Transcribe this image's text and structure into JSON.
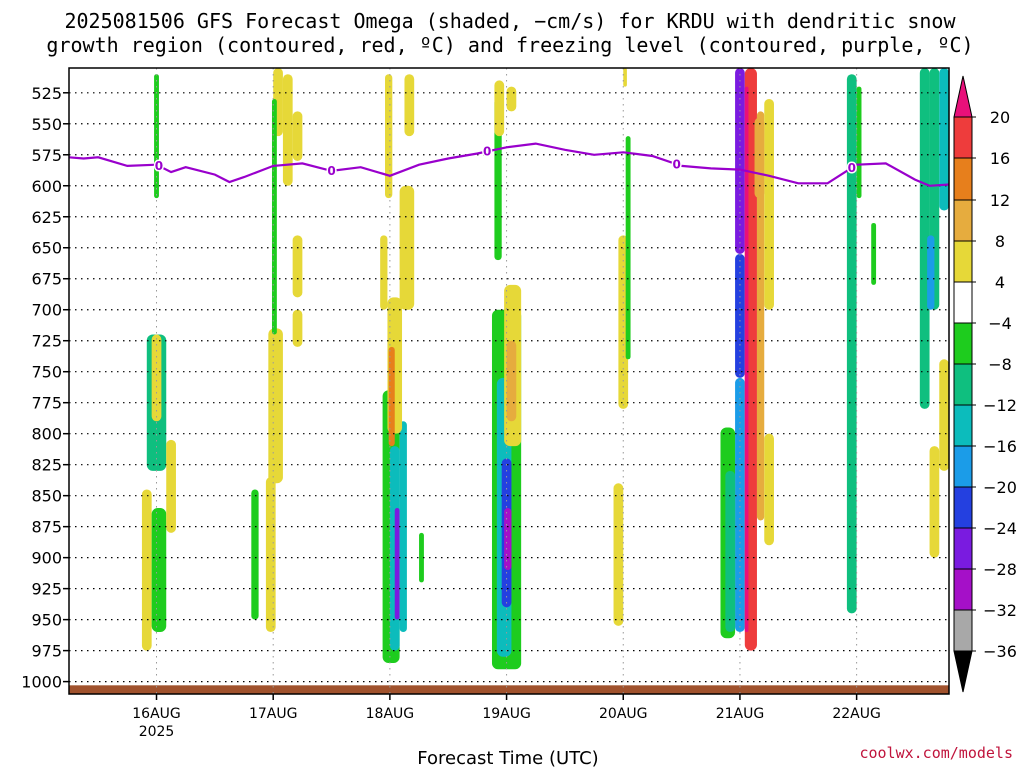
{
  "chart_data": {
    "type": "heatmap",
    "title_line1": "2025081506 GFS Forecast Omega (shaded, −cm/s) for KRDU with dendritic snow",
    "title_line2": "growth region (contoured, red, ºC) and freezing level (contoured, purple, ºC)",
    "xlabel": "Forecast Time (UTC)",
    "credit": "coolwx.com/models",
    "y_axis": {
      "unit": "hPa",
      "range": [
        1010,
        505
      ],
      "ticks": [
        525,
        550,
        575,
        600,
        625,
        650,
        675,
        700,
        725,
        750,
        775,
        800,
        825,
        850,
        875,
        900,
        925,
        950,
        975,
        1000
      ],
      "grid": true
    },
    "x_axis": {
      "start": "2025-08-15T06:00",
      "end": "2025-08-22T19:00",
      "ticks": [
        {
          "label": "16AUG",
          "sublabel": "2025",
          "time": "2025-08-16T00:00"
        },
        {
          "label": "17AUG",
          "time": "2025-08-17T00:00"
        },
        {
          "label": "18AUG",
          "time": "2025-08-18T00:00"
        },
        {
          "label": "19AUG",
          "time": "2025-08-19T00:00"
        },
        {
          "label": "20AUG",
          "time": "2025-08-20T00:00"
        },
        {
          "label": "21AUG",
          "time": "2025-08-21T00:00"
        },
        {
          "label": "22AUG",
          "time": "2025-08-22T00:00"
        }
      ]
    },
    "colorbar": {
      "labels": [
        20,
        16,
        12,
        8,
        4,
        -4,
        -8,
        -12,
        -16,
        -20,
        -24,
        -28,
        -32,
        -36
      ],
      "colors": {
        "gt20": "#e8107a",
        "16": "#ee3c3c",
        "12": "#e77f1c",
        "8": "#e6ac3e",
        "4": "#e6d838",
        "0": "#ffffff",
        "-4": "#1ecc1e",
        "-8": "#0fbf7f",
        "-12": "#0cbcbc",
        "-16": "#1b9ce8",
        "-20": "#2440e0",
        "-24": "#7a1be0",
        "-28": "#a510c8",
        "-32": "#a8a8a8",
        "lt-36": "#000000"
      }
    },
    "freezing_level_line": {
      "color": "#9900cc",
      "label": "0",
      "points": [
        [
          "2025-08-15T06:00",
          577
        ],
        [
          "2025-08-15T09:00",
          578
        ],
        [
          "2025-08-15T12:00",
          577
        ],
        [
          "2025-08-15T18:00",
          584
        ],
        [
          "2025-08-16T00:00",
          583
        ],
        [
          "2025-08-16T03:00",
          589
        ],
        [
          "2025-08-16T06:00",
          585
        ],
        [
          "2025-08-16T12:00",
          591
        ],
        [
          "2025-08-16T15:00",
          597
        ],
        [
          "2025-08-16T18:00",
          593
        ],
        [
          "2025-08-17T00:00",
          584
        ],
        [
          "2025-08-17T06:00",
          582
        ],
        [
          "2025-08-17T12:00",
          588
        ],
        [
          "2025-08-17T18:00",
          585
        ],
        [
          "2025-08-18T00:00",
          592
        ],
        [
          "2025-08-18T06:00",
          583
        ],
        [
          "2025-08-18T12:00",
          578
        ],
        [
          "2025-08-18T18:00",
          574
        ],
        [
          "2025-08-19T00:00",
          569
        ],
        [
          "2025-08-19T06:00",
          566
        ],
        [
          "2025-08-19T12:00",
          571
        ],
        [
          "2025-08-19T18:00",
          575
        ],
        [
          "2025-08-20T00:00",
          573
        ],
        [
          "2025-08-20T06:00",
          576
        ],
        [
          "2025-08-20T12:00",
          584
        ],
        [
          "2025-08-20T18:00",
          586
        ],
        [
          "2025-08-21T00:00",
          587
        ],
        [
          "2025-08-21T06:00",
          592
        ],
        [
          "2025-08-21T12:00",
          598
        ],
        [
          "2025-08-21T18:00",
          598
        ],
        [
          "2025-08-22T00:00",
          583
        ],
        [
          "2025-08-22T06:00",
          582
        ],
        [
          "2025-08-22T12:00",
          595
        ],
        [
          "2025-08-22T15:00",
          600
        ],
        [
          "2025-08-22T19:00",
          599
        ]
      ],
      "labels_at": [
        "2025-08-16T00:30",
        "2025-08-17T12:00",
        "2025-08-18T20:00",
        "2025-08-20T11:00",
        "2025-08-21T23:00"
      ]
    },
    "regions": [
      {
        "t": [
          "2025-08-15T22:00",
          "2025-08-16T02:00"
        ],
        "p": [
          720,
          830
        ],
        "v": -8
      },
      {
        "t": [
          "2025-08-15T23:00",
          "2025-08-16T01:00"
        ],
        "p": [
          720,
          790
        ],
        "v": 6
      },
      {
        "t": [
          "2025-08-15T21:00",
          "2025-08-15T23:00"
        ],
        "p": [
          845,
          975
        ],
        "v": 6
      },
      {
        "t": [
          "2025-08-15T23:00",
          "2025-08-16T02:00"
        ],
        "p": [
          860,
          960
        ],
        "v": -6
      },
      {
        "t": [
          "2025-08-16T02:00",
          "2025-08-16T04:00"
        ],
        "p": [
          805,
          880
        ],
        "v": 6
      },
      {
        "t": [
          "2025-08-15T23:30",
          "2025-08-16T00:30"
        ],
        "p": [
          510,
          610
        ],
        "v": -6
      },
      {
        "t": [
          "2025-08-17T00:00",
          "2025-08-17T02:00"
        ],
        "p": [
          505,
          560
        ],
        "v": 6
      },
      {
        "t": [
          "2025-08-17T02:00",
          "2025-08-17T04:00"
        ],
        "p": [
          510,
          600
        ],
        "v": 6
      },
      {
        "t": [
          "2025-08-16T23:00",
          "2025-08-17T02:00"
        ],
        "p": [
          715,
          840
        ],
        "v": 6
      },
      {
        "t": [
          "2025-08-16T22:30",
          "2025-08-17T00:30"
        ],
        "p": [
          835,
          960
        ],
        "v": 6
      },
      {
        "t": [
          "2025-08-16T19:30",
          "2025-08-16T21:00"
        ],
        "p": [
          845,
          950
        ],
        "v": -6
      },
      {
        "t": [
          "2025-08-16T23:45",
          "2025-08-17T00:45"
        ],
        "p": [
          530,
          720
        ],
        "v": -6
      },
      {
        "t": [
          "2025-08-17T04:00",
          "2025-08-17T06:00"
        ],
        "p": [
          640,
          690
        ],
        "v": 6
      },
      {
        "t": [
          "2025-08-17T04:00",
          "2025-08-17T06:00"
        ],
        "p": [
          540,
          580
        ],
        "v": 6
      },
      {
        "t": [
          "2025-08-17T04:00",
          "2025-08-17T06:00"
        ],
        "p": [
          700,
          730
        ],
        "v": 6
      },
      {
        "t": [
          "2025-08-17T22:30",
          "2025-08-18T02:00"
        ],
        "p": [
          765,
          985
        ],
        "v": -6
      },
      {
        "t": [
          "2025-08-18T00:00",
          "2025-08-18T02:00"
        ],
        "p": [
          810,
          975
        ],
        "v": -12
      },
      {
        "t": [
          "2025-08-18T01:00",
          "2025-08-18T02:00"
        ],
        "p": [
          860,
          950
        ],
        "v": -24
      },
      {
        "t": [
          "2025-08-18T02:00",
          "2025-08-18T03:30"
        ],
        "p": [
          790,
          960
        ],
        "v": -12
      },
      {
        "t": [
          "2025-08-17T23:30",
          "2025-08-18T02:30"
        ],
        "p": [
          690,
          800
        ],
        "v": 6
      },
      {
        "t": [
          "2025-08-17T23:45",
          "2025-08-18T01:00"
        ],
        "p": [
          730,
          810
        ],
        "v": 12
      },
      {
        "t": [
          "2025-08-18T02:00",
          "2025-08-18T05:00"
        ],
        "p": [
          600,
          700
        ],
        "v": 6
      },
      {
        "t": [
          "2025-08-17T22:00",
          "2025-08-17T23:30"
        ],
        "p": [
          640,
          700
        ],
        "v": 6
      },
      {
        "t": [
          "2025-08-17T23:00",
          "2025-08-18T00:30"
        ],
        "p": [
          510,
          610
        ],
        "v": 6
      },
      {
        "t": [
          "2025-08-18T03:00",
          "2025-08-18T05:00"
        ],
        "p": [
          510,
          560
        ],
        "v": 6
      },
      {
        "t": [
          "2025-08-18T06:00",
          "2025-08-18T07:00"
        ],
        "p": [
          880,
          920
        ],
        "v": -6
      },
      {
        "t": [
          "2025-08-18T21:00",
          "2025-08-19T03:00"
        ],
        "p": [
          700,
          990
        ],
        "v": -6
      },
      {
        "t": [
          "2025-08-18T22:00",
          "2025-08-19T01:00"
        ],
        "p": [
          755,
          980
        ],
        "v": -12
      },
      {
        "t": [
          "2025-08-18T23:00",
          "2025-08-19T01:00"
        ],
        "p": [
          820,
          940
        ],
        "v": -20
      },
      {
        "t": [
          "2025-08-18T23:30",
          "2025-08-19T01:00"
        ],
        "p": [
          860,
          910
        ],
        "v": -28
      },
      {
        "t": [
          "2025-08-18T21:30",
          "2025-08-18T23:00"
        ],
        "p": [
          530,
          660
        ],
        "v": -6
      },
      {
        "t": [
          "2025-08-18T21:30",
          "2025-08-18T23:30"
        ],
        "p": [
          515,
          560
        ],
        "v": 6
      },
      {
        "t": [
          "2025-08-18T23:30",
          "2025-08-19T03:00"
        ],
        "p": [
          680,
          810
        ],
        "v": 6
      },
      {
        "t": [
          "2025-08-19T00:00",
          "2025-08-19T02:00"
        ],
        "p": [
          725,
          790
        ],
        "v": 10
      },
      {
        "t": [
          "2025-08-19T00:00",
          "2025-08-19T02:00"
        ],
        "p": [
          520,
          540
        ],
        "v": 6
      },
      {
        "t": [
          "2025-08-19T22:00",
          "2025-08-20T00:00"
        ],
        "p": [
          840,
          955
        ],
        "v": 6
      },
      {
        "t": [
          "2025-08-19T23:00",
          "2025-08-20T01:00"
        ],
        "p": [
          640,
          780
        ],
        "v": 6
      },
      {
        "t": [
          "2025-08-20T00:30",
          "2025-08-20T01:30"
        ],
        "p": [
          560,
          740
        ],
        "v": -6
      },
      {
        "t": [
          "2025-08-20T00:00",
          "2025-08-20T00:45"
        ],
        "p": [
          505,
          520
        ],
        "v": 6
      },
      {
        "t": [
          "2025-08-20T23:00",
          "2025-08-21T01:00"
        ],
        "p": [
          505,
          655
        ],
        "v": -24
      },
      {
        "t": [
          "2025-08-20T23:00",
          "2025-08-21T01:00"
        ],
        "p": [
          655,
          755
        ],
        "v": -20
      },
      {
        "t": [
          "2025-08-20T23:00",
          "2025-08-21T01:00"
        ],
        "p": [
          755,
          960
        ],
        "v": -16
      },
      {
        "t": [
          "2025-08-20T20:00",
          "2025-08-20T23:00"
        ],
        "p": [
          795,
          965
        ],
        "v": -6
      },
      {
        "t": [
          "2025-08-20T21:00",
          "2025-08-20T23:00"
        ],
        "p": [
          830,
          960
        ],
        "v": -10
      },
      {
        "t": [
          "2025-08-21T01:00",
          "2025-08-21T03:30"
        ],
        "p": [
          505,
          975
        ],
        "v": 20
      },
      {
        "t": [
          "2025-08-21T01:00",
          "2025-08-21T01:45"
        ],
        "p": [
          520,
          960
        ],
        "v": 22
      },
      {
        "t": [
          "2025-08-21T03:30",
          "2025-08-21T05:00"
        ],
        "p": [
          540,
          870
        ],
        "v": 10
      },
      {
        "t": [
          "2025-08-21T05:00",
          "2025-08-21T07:00"
        ],
        "p": [
          530,
          700
        ],
        "v": 6
      },
      {
        "t": [
          "2025-08-21T05:00",
          "2025-08-21T07:00"
        ],
        "p": [
          800,
          890
        ],
        "v": 6
      },
      {
        "t": [
          "2025-08-21T03:00",
          "2025-08-21T05:00"
        ],
        "p": [
          545,
          610
        ],
        "v": 10
      },
      {
        "t": [
          "2025-08-21T22:00",
          "2025-08-22T00:00"
        ],
        "p": [
          510,
          945
        ],
        "v": -10
      },
      {
        "t": [
          "2025-08-22T00:00",
          "2025-08-22T01:00"
        ],
        "p": [
          520,
          610
        ],
        "v": -6
      },
      {
        "t": [
          "2025-08-22T03:00",
          "2025-08-22T04:00"
        ],
        "p": [
          630,
          680
        ],
        "v": -6
      },
      {
        "t": [
          "2025-08-22T13:00",
          "2025-08-22T15:00"
        ],
        "p": [
          500,
          780
        ],
        "v": -8
      },
      {
        "t": [
          "2025-08-22T15:00",
          "2025-08-22T17:00"
        ],
        "p": [
          505,
          700
        ],
        "v": -10
      },
      {
        "t": [
          "2025-08-22T17:00",
          "2025-08-22T19:00"
        ],
        "p": [
          500,
          620
        ],
        "v": -12
      },
      {
        "t": [
          "2025-08-22T14:30",
          "2025-08-22T16:00"
        ],
        "p": [
          640,
          700
        ],
        "v": -16
      },
      {
        "t": [
          "2025-08-22T15:00",
          "2025-08-22T17:00"
        ],
        "p": [
          810,
          900
        ],
        "v": 6
      },
      {
        "t": [
          "2025-08-22T17:00",
          "2025-08-22T19:00"
        ],
        "p": [
          740,
          830
        ],
        "v": 6
      }
    ]
  }
}
